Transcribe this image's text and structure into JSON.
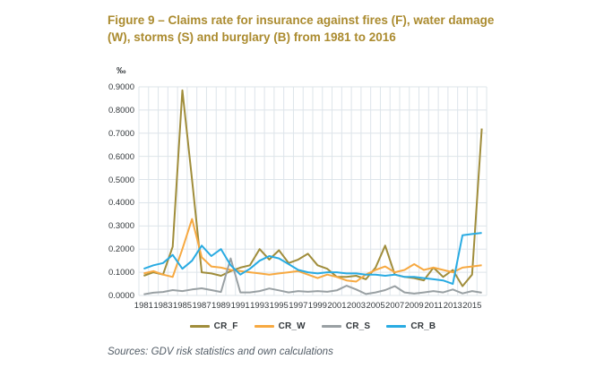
{
  "title": {
    "text": "Figure 9 – Claims rate for insurance against fires (F), water damage (W), storms (S) and burglary (B) from 1981 to 2016"
  },
  "source_note": "Sources: GDV risk statistics and own calculations",
  "colors": {
    "title_gold": "#ab8b2f",
    "axis_text": "#33383c",
    "gridline": "#dde4ea",
    "source_text": "#525c66"
  },
  "chart_data": {
    "type": "line",
    "title": "Figure 9 – Claims rate for insurance against fires (F), water damage (W), storms (S) and burglary (B) from 1981 to 2016",
    "unit": "‰",
    "ylabel": "‰",
    "xlabel": "",
    "ylim": [
      0.0,
      0.9
    ],
    "grid": true,
    "legend_position": "bottom",
    "x": [
      1981,
      1982,
      1983,
      1984,
      1985,
      1986,
      1987,
      1988,
      1989,
      1990,
      1991,
      1992,
      1993,
      1994,
      1995,
      1996,
      1997,
      1998,
      1999,
      2000,
      2001,
      2002,
      2003,
      2004,
      2005,
      2006,
      2007,
      2008,
      2009,
      2010,
      2011,
      2012,
      2013,
      2014,
      2015,
      2016
    ],
    "x_tick_labels": [
      "1981",
      "1983",
      "1985",
      "1987",
      "1989",
      "1991",
      "1993",
      "1995",
      "1997",
      "1999",
      "2001",
      "2003",
      "2005",
      "2007",
      "2009",
      "2011",
      "2013",
      "2015"
    ],
    "y_tick_labels": [
      "0.0000",
      "0.1000",
      "0.2000",
      "0.3000",
      "0.4000",
      "0.5000",
      "0.6000",
      "0.7000",
      "0.8000",
      "0.9000"
    ],
    "series": [
      {
        "name": "CR_F",
        "color": "#a08d3b",
        "values": [
          0.085,
          0.1,
          0.09,
          0.21,
          0.885,
          0.5,
          0.1,
          0.095,
          0.085,
          0.105,
          0.12,
          0.13,
          0.2,
          0.155,
          0.195,
          0.14,
          0.155,
          0.18,
          0.13,
          0.115,
          0.08,
          0.08,
          0.085,
          0.07,
          0.12,
          0.215,
          0.09,
          0.08,
          0.075,
          0.065,
          0.12,
          0.08,
          0.11,
          0.04,
          0.09,
          0.72
        ]
      },
      {
        "name": "CR_W",
        "color": "#f7a941",
        "values": [
          0.095,
          0.105,
          0.09,
          0.08,
          0.2,
          0.33,
          0.165,
          0.125,
          0.12,
          0.11,
          0.105,
          0.1,
          0.095,
          0.09,
          0.095,
          0.1,
          0.105,
          0.09,
          0.075,
          0.09,
          0.08,
          0.065,
          0.06,
          0.09,
          0.11,
          0.125,
          0.1,
          0.11,
          0.135,
          0.11,
          0.12,
          0.11,
          0.1,
          0.12,
          0.125,
          0.13
        ]
      },
      {
        "name": "CR_S",
        "color": "#99a0a3",
        "values": [
          0.005,
          0.012,
          0.015,
          0.023,
          0.019,
          0.026,
          0.031,
          0.023,
          0.015,
          0.16,
          0.013,
          0.013,
          0.019,
          0.03,
          0.022,
          0.013,
          0.019,
          0.016,
          0.019,
          0.016,
          0.022,
          0.042,
          0.026,
          0.006,
          0.013,
          0.023,
          0.04,
          0.013,
          0.008,
          0.013,
          0.019,
          0.013,
          0.026,
          0.009,
          0.019,
          0.012
        ]
      },
      {
        "name": "CR_B",
        "color": "#29abe2",
        "values": [
          0.115,
          0.13,
          0.14,
          0.175,
          0.115,
          0.15,
          0.215,
          0.17,
          0.2,
          0.13,
          0.09,
          0.115,
          0.15,
          0.17,
          0.16,
          0.135,
          0.11,
          0.1,
          0.095,
          0.1,
          0.1,
          0.095,
          0.095,
          0.09,
          0.09,
          0.085,
          0.09,
          0.08,
          0.08,
          0.075,
          0.07,
          0.065,
          0.05,
          0.26,
          0.265,
          0.27
        ]
      }
    ]
  }
}
